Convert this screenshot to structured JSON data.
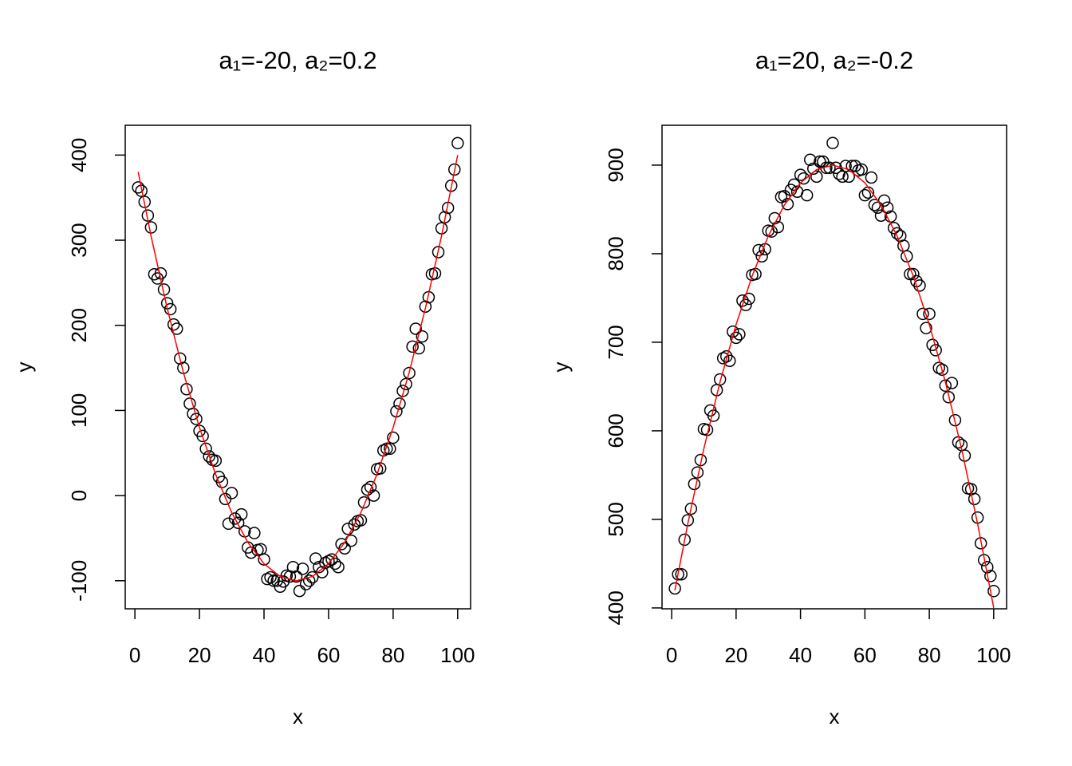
{
  "chart_data": [
    {
      "type": "scatter",
      "title": "a₁=-20, a₂=0.2",
      "x_label": "x",
      "y_label": "y",
      "x": [
        1,
        2,
        3,
        4,
        5,
        6,
        7,
        8,
        9,
        10,
        11,
        12,
        13,
        14,
        15,
        16,
        17,
        18,
        19,
        20,
        21,
        22,
        23,
        24,
        25,
        26,
        27,
        28,
        29,
        30,
        31,
        32,
        33,
        34,
        35,
        36,
        37,
        38,
        39,
        40,
        41,
        42,
        43,
        44,
        45,
        46,
        47,
        48,
        49,
        50,
        51,
        52,
        53,
        54,
        55,
        56,
        57,
        58,
        59,
        60,
        61,
        62,
        63,
        64,
        65,
        66,
        67,
        68,
        69,
        70,
        71,
        72,
        73,
        74,
        75,
        76,
        77,
        78,
        79,
        80,
        81,
        82,
        83,
        84,
        85,
        86,
        87,
        88,
        89,
        90,
        91,
        92,
        93,
        94,
        95,
        96,
        97,
        98,
        99,
        100
      ],
      "values": [
        362,
        358,
        345,
        329,
        315,
        260,
        255,
        261,
        242,
        226,
        219,
        201,
        196,
        161,
        150,
        125,
        108,
        96,
        90,
        76,
        70,
        55,
        46,
        42,
        41,
        22,
        16,
        -4,
        -33,
        3,
        -27,
        -32,
        -22,
        -42,
        -61,
        -67,
        -44,
        -64,
        -63,
        -75,
        -98,
        -96,
        -100,
        -100,
        -107,
        -101,
        -94,
        -95,
        -84,
        -95,
        -112,
        -86,
        -104,
        -100,
        -96,
        -74,
        -84,
        -90,
        -79,
        -77,
        -75,
        -80,
        -84,
        -57,
        -62,
        -39,
        -53,
        -34,
        -30,
        -29,
        -8,
        7,
        10,
        0,
        31,
        32,
        53,
        55,
        55,
        68,
        99,
        108,
        123,
        131,
        144,
        175,
        196,
        173,
        187,
        222,
        233,
        260,
        261,
        286,
        314,
        327,
        338,
        364,
        383,
        414
      ],
      "point_color": "#000000",
      "fit": {
        "color": "#ff0000",
        "x": [
          1,
          5,
          10,
          15,
          20,
          25,
          30,
          35,
          40,
          45,
          50,
          55,
          60,
          65,
          70,
          75,
          80,
          85,
          90,
          95,
          100
        ],
        "values": [
          380.2,
          305,
          220,
          145,
          80,
          25,
          -20,
          -55,
          -80,
          -95,
          -100,
          -95,
          -80,
          -55,
          -20,
          25,
          80,
          145,
          220,
          305,
          400
        ]
      },
      "xlim": [
        -3,
        104
      ],
      "ylim": [
        -133,
        435
      ],
      "xticks": [
        0,
        20,
        40,
        60,
        80,
        100
      ],
      "yticks": [
        -100,
        0,
        100,
        200,
        300,
        400
      ]
    },
    {
      "type": "scatter",
      "title": "a₁=20, a₂=-0.2",
      "x_label": "x",
      "y_label": "y",
      "x": [
        1,
        2,
        3,
        4,
        5,
        6,
        7,
        8,
        9,
        10,
        11,
        12,
        13,
        14,
        15,
        16,
        17,
        18,
        19,
        20,
        21,
        22,
        23,
        24,
        25,
        26,
        27,
        28,
        29,
        30,
        31,
        32,
        33,
        34,
        35,
        36,
        37,
        38,
        39,
        40,
        41,
        42,
        43,
        44,
        45,
        46,
        47,
        48,
        49,
        50,
        51,
        52,
        53,
        54,
        55,
        56,
        57,
        58,
        59,
        60,
        61,
        62,
        63,
        64,
        65,
        66,
        67,
        68,
        69,
        70,
        71,
        72,
        73,
        74,
        75,
        76,
        77,
        78,
        79,
        80,
        81,
        82,
        83,
        84,
        85,
        86,
        87,
        88,
        89,
        90,
        91,
        92,
        93,
        94,
        95,
        96,
        97,
        98,
        99,
        100
      ],
      "values": [
        422,
        438,
        438,
        477,
        499,
        512,
        540,
        553,
        567,
        602,
        601,
        623,
        617,
        646,
        658,
        682,
        684,
        679,
        712,
        705,
        709,
        747,
        742,
        749,
        776,
        777,
        804,
        797,
        805,
        826,
        825,
        840,
        830,
        864,
        865,
        856,
        872,
        878,
        870,
        889,
        885,
        866,
        906,
        896,
        887,
        904,
        904,
        897,
        897,
        925,
        897,
        890,
        887,
        899,
        887,
        899,
        899,
        894,
        895,
        866,
        869,
        886,
        855,
        852,
        843,
        860,
        852,
        842,
        829,
        823,
        820,
        809,
        797,
        777,
        777,
        769,
        764,
        732,
        716,
        732,
        697,
        691,
        671,
        669,
        651,
        638,
        654,
        612,
        587,
        584,
        572,
        535,
        534,
        523,
        502,
        473,
        454,
        446,
        436,
        419
      ],
      "point_color": "#000000",
      "fit": {
        "color": "#ff0000",
        "x": [
          1,
          5,
          10,
          15,
          20,
          25,
          30,
          35,
          40,
          45,
          50,
          55,
          60,
          65,
          70,
          75,
          80,
          85,
          90,
          95,
          100
        ],
        "values": [
          419.8,
          495,
          580,
          655,
          720,
          775,
          820,
          855,
          880,
          895,
          900,
          895,
          880,
          855,
          820,
          775,
          720,
          655,
          580,
          495,
          400
        ]
      },
      "xlim": [
        -3,
        104
      ],
      "ylim": [
        399,
        945
      ],
      "xticks": [
        0,
        20,
        40,
        60,
        80,
        100
      ],
      "yticks": [
        400,
        500,
        600,
        700,
        800,
        900
      ]
    }
  ]
}
